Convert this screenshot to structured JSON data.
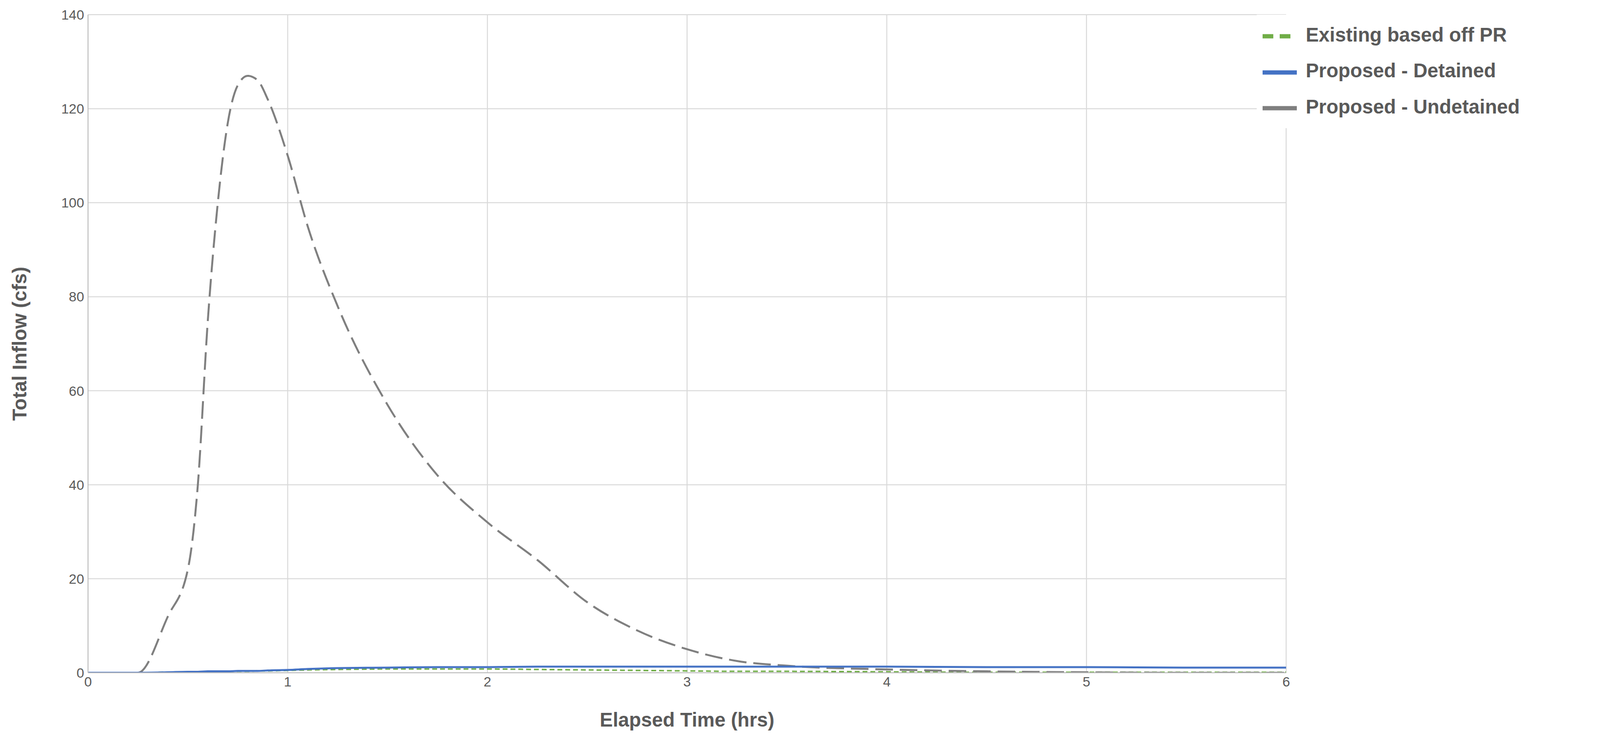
{
  "chart_data": {
    "type": "line",
    "x_label": "Elapsed Time (hrs)",
    "y_label": "Total Inflow (cfs)",
    "x": [
      0,
      0.25,
      0.4,
      0.5,
      0.55,
      0.6,
      0.65,
      0.7,
      0.75,
      0.8,
      0.85,
      0.9,
      1.0,
      1.1,
      1.25,
      1.5,
      1.75,
      2.0,
      2.25,
      2.5,
      2.75,
      3.0,
      3.25,
      3.5,
      4,
      4.5,
      5,
      5.5,
      6
    ],
    "series": [
      {
        "name": "Existing based off PR",
        "color": "#70ad47",
        "line_style": "short_dash",
        "values": [
          0,
          0,
          0.1,
          0.1,
          0.2,
          0.2,
          0.2,
          0.3,
          0.3,
          0.3,
          0.4,
          0.4,
          0.5,
          0.6,
          0.7,
          0.8,
          0.8,
          0.8,
          0.7,
          0.6,
          0.5,
          0.4,
          0.3,
          0.3,
          0.2,
          0.1,
          0.1,
          0.1,
          0.1
        ]
      },
      {
        "name": "Proposed - Undetained",
        "color": "#7f7f7f",
        "line_style": "long_dash",
        "values": [
          0,
          0,
          12,
          22,
          40,
          75,
          100,
          117,
          125,
          127,
          126,
          122,
          110,
          95,
          78,
          57,
          42,
          32,
          24,
          15,
          9,
          5,
          2.5,
          1.5,
          0.7,
          0.3,
          0.1,
          0,
          0
        ]
      },
      {
        "name": "Proposed - Detained",
        "color": "#4472c4",
        "line_style": "solid",
        "values": [
          0,
          0,
          0.1,
          0.2,
          0.2,
          0.3,
          0.3,
          0.3,
          0.4,
          0.4,
          0.4,
          0.5,
          0.6,
          0.8,
          1.0,
          1.1,
          1.2,
          1.2,
          1.3,
          1.3,
          1.3,
          1.3,
          1.3,
          1.3,
          1.3,
          1.2,
          1.2,
          1.1,
          1.1
        ]
      }
    ],
    "xlim": [
      0,
      6
    ],
    "xticks": [
      0,
      1,
      2,
      3,
      4,
      5,
      6
    ],
    "ylim": [
      0,
      140
    ],
    "yticks": [
      0,
      20,
      40,
      60,
      80,
      100,
      120,
      140
    ],
    "grid": true,
    "legend": "top-right"
  }
}
